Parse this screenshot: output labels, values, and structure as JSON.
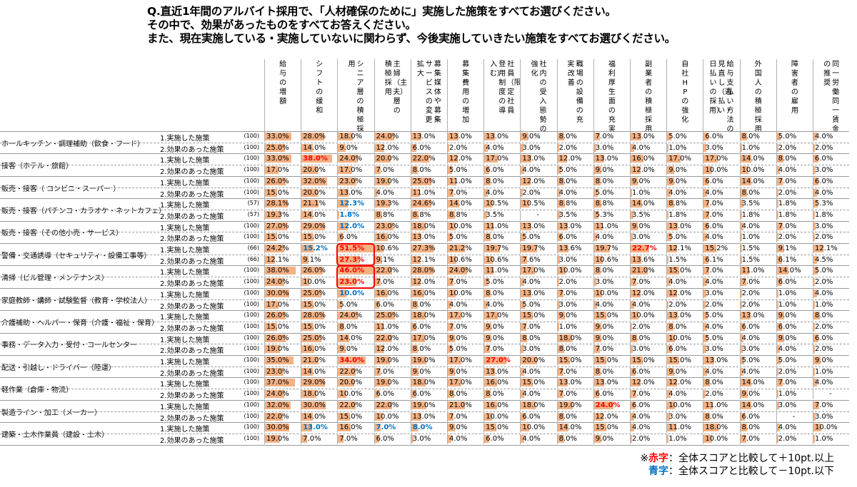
{
  "question": {
    "line1": "Q.直近1年間のアルバイト採用で、「人材確保のために」実施した施策をすべてお選びください。",
    "line2": "その中で、効果があったものをすべてお答えください。",
    "line3": "また、現在実施している・実施していないに関わらず、今後実施していきたい施策をすべてお選びください。"
  },
  "legend": {
    "red_label": "赤字",
    "red_text": "：全体スコアと比較して＋10pt.以上",
    "blue_label": "青字",
    "blue_text": "：全体スコアと比較して－10pt.以下",
    "mark": "※"
  },
  "colors": {
    "bar": "#f4b183",
    "red": "#ff0000",
    "blue": "#0070c0"
  },
  "chart_data": {
    "type": "table",
    "title": "",
    "columns": [
      [
        "給与の増額"
      ],
      [
        "シフトの緩和"
      ],
      [
        "シニア層の積極採",
        "用"
      ],
      [
        "主婦（主夫）層の",
        "積極採用"
      ],
      [
        "募集媒体や募集",
        "サービスの変更・",
        "拡大"
      ],
      [
        "募集費用の増加"
      ],
      [
        "社員（限定社員",
        "登用制度の導",
        "入む）"
      ],
      [
        "社内の受入態勢の",
        "強化"
      ],
      [
        "職場の設備の充",
        "実・改善"
      ],
      [
        "福利厚生面の充実"
      ],
      [
        "副業者の積極採用"
      ],
      [
        "自社HPの強化"
      ],
      [
        "給与支払い方法の",
        "見直し（週払い・",
        "日払いの採用）"
      ],
      [
        "外国人の積極採用"
      ],
      [
        "障害者の雇用"
      ],
      [
        "同一労働同一賃金",
        "の推奨"
      ]
    ],
    "sub_labels": [
      "1.実施した施策",
      "2.効果のあった施策"
    ],
    "rows": [
      {
        "job": "ホールキッチン・調理補助（飲食・フード）",
        "n": [
          "(100)",
          "(100)"
        ],
        "values": [
          [
            33.0,
            28.0,
            18.0,
            24.0,
            13.0,
            13.0,
            13.0,
            9.0,
            8.0,
            7.0,
            13.0,
            5.0,
            6.0,
            8.0,
            5.0,
            4.0
          ],
          [
            25.0,
            14.0,
            9.0,
            12.0,
            6.0,
            2.0,
            4.0,
            3.0,
            2.0,
            3.0,
            4.0,
            1.0,
            3.0,
            1.0,
            2.0,
            2.0
          ]
        ],
        "flags": [
          {},
          {}
        ]
      },
      {
        "job": "接客（ホテル・旅館）",
        "n": [
          "(100)",
          "(100)"
        ],
        "values": [
          [
            33.0,
            38.0,
            24.0,
            20.0,
            22.0,
            12.0,
            17.0,
            13.0,
            12.0,
            13.0,
            16.0,
            17.0,
            17.0,
            14.0,
            8.0,
            6.0
          ],
          [
            17.0,
            20.0,
            17.0,
            7.0,
            8.0,
            5.0,
            6.0,
            4.0,
            5.0,
            9.0,
            12.0,
            9.0,
            10.0,
            10.0,
            4.0,
            3.0
          ]
        ],
        "flags": [
          {
            "1": "red"
          },
          {}
        ]
      },
      {
        "job": "販売・接客（ コンビニ・スーパー ）",
        "n": [
          "(100)",
          "(100)"
        ],
        "values": [
          [
            26.0,
            32.0,
            23.0,
            19.0,
            25.0,
            11.0,
            8.0,
            12.0,
            8.0,
            8.0,
            9.0,
            9.0,
            6.0,
            14.0,
            7.0,
            6.0
          ],
          [
            15.0,
            20.0,
            13.0,
            4.0,
            11.0,
            7.0,
            4.0,
            2.0,
            4.0,
            5.0,
            1.0,
            4.0,
            4.0,
            8.0,
            2.0,
            4.0
          ]
        ],
        "flags": [
          {},
          {}
        ]
      },
      {
        "job": "販売・接客（パチンコ・カラオケ・ネットカフェ）",
        "n": [
          "(57)",
          "(57)"
        ],
        "values": [
          [
            28.1,
            21.1,
            12.3,
            19.3,
            24.6,
            14.0,
            10.5,
            10.5,
            8.8,
            8.8,
            14.0,
            8.8,
            7.0,
            3.5,
            1.8,
            5.3
          ],
          [
            19.3,
            14.0,
            1.8,
            8.8,
            8.8,
            8.8,
            3.5,
            null,
            3.5,
            5.3,
            3.5,
            1.8,
            7.0,
            1.8,
            1.8,
            1.8
          ]
        ],
        "flags": [
          {
            "2": "blue"
          },
          {
            "2": "blue"
          }
        ]
      },
      {
        "job": "販売・接客（その他小売・サービス）",
        "n": [
          "(100)",
          "(100)"
        ],
        "values": [
          [
            27.0,
            29.0,
            12.0,
            23.0,
            18.0,
            10.0,
            11.0,
            13.0,
            13.0,
            11.0,
            9.0,
            13.0,
            6.0,
            4.0,
            7.0,
            3.0
          ],
          [
            15.0,
            15.0,
            6.0,
            16.0,
            13.0,
            5.0,
            8.0,
            5.0,
            6.0,
            4.0,
            3.0,
            5.0,
            4.0,
            1.0,
            2.0,
            2.0
          ]
        ],
        "flags": [
          {
            "2": "blue"
          },
          {}
        ]
      },
      {
        "job": "警備・交通誘導（セキュリティ・設備工事等）",
        "n": [
          "(66)",
          "(66)"
        ],
        "values": [
          [
            24.2,
            15.2,
            51.5,
            10.6,
            27.3,
            21.2,
            19.7,
            19.7,
            13.6,
            19.7,
            22.7,
            12.1,
            15.2,
            1.5,
            9.1,
            12.1
          ],
          [
            12.1,
            9.1,
            27.3,
            9.1,
            12.1,
            10.6,
            10.6,
            7.6,
            3.0,
            10.6,
            13.6,
            1.5,
            6.1,
            1.5,
            6.1,
            4.5
          ]
        ],
        "flags": [
          {
            "1": "blue",
            "2": "red",
            "10": "red"
          },
          {
            "2": "red"
          }
        ]
      },
      {
        "job": "清掃（ビル管理・メンテナンス）",
        "n": [
          "(100)",
          "(100)"
        ],
        "values": [
          [
            38.0,
            26.0,
            46.0,
            22.0,
            28.0,
            24.0,
            11.0,
            17.0,
            10.0,
            8.0,
            21.0,
            15.0,
            7.0,
            11.0,
            14.0,
            5.0
          ],
          [
            24.0,
            10.0,
            23.0,
            7.0,
            12.0,
            7.0,
            5.0,
            4.0,
            2.0,
            3.0,
            7.0,
            4.0,
            4.0,
            7.0,
            6.0,
            2.0
          ]
        ],
        "flags": [
          {
            "2": "red"
          },
          {
            "2": "red"
          }
        ]
      },
      {
        "job": "家庭教師・講師・試験監督（教育・学校法人）",
        "n": [
          "(100)",
          "(100)"
        ],
        "values": [
          [
            30.0,
            25.0,
            10.0,
            16.0,
            16.0,
            10.0,
            8.0,
            13.0,
            7.0,
            10.0,
            12.0,
            12.0,
            3.0,
            2.0,
            1.0,
            4.0
          ],
          [
            17.0,
            15.0,
            5.0,
            6.0,
            8.0,
            4.0,
            4.0,
            5.0,
            3.0,
            4.0,
            4.0,
            2.0,
            2.0,
            2.0,
            1.0,
            1.0
          ]
        ],
        "flags": [
          {
            "2": "blue"
          },
          {}
        ]
      },
      {
        "job": "介護補助・ヘルパー・保育（介護・福祉・保育）",
        "n": [
          "(100)",
          "(100)"
        ],
        "values": [
          [
            26.0,
            28.0,
            24.0,
            25.0,
            18.0,
            17.0,
            17.0,
            15.0,
            9.0,
            15.0,
            10.0,
            13.0,
            5.0,
            13.0,
            9.0,
            8.0
          ],
          [
            15.0,
            15.0,
            8.0,
            11.0,
            6.0,
            7.0,
            9.0,
            7.0,
            1.0,
            9.0,
            2.0,
            8.0,
            4.0,
            6.0,
            6.0,
            2.0
          ]
        ],
        "flags": [
          {},
          {}
        ]
      },
      {
        "job": "事務・データ入力・受付・コールセンター",
        "n": [
          "(100)",
          "(100)"
        ],
        "values": [
          [
            26.0,
            25.0,
            14.0,
            22.0,
            17.0,
            9.0,
            9.0,
            8.0,
            18.0,
            9.0,
            8.0,
            10.0,
            5.0,
            4.0,
            9.0,
            6.0
          ],
          [
            19.0,
            16.0,
            9.0,
            12.0,
            8.0,
            5.0,
            7.0,
            3.0,
            8.0,
            7.0,
            3.0,
            6.0,
            3.0,
            3.0,
            4.0,
            2.0
          ]
        ],
        "flags": [
          {},
          {}
        ]
      },
      {
        "job": "配送・引越し・ドライバー（陸運）",
        "n": [
          "(100)",
          "(100)"
        ],
        "values": [
          [
            35.0,
            21.0,
            34.0,
            19.0,
            19.0,
            17.0,
            27.0,
            20.0,
            15.0,
            15.0,
            15.0,
            15.0,
            13.0,
            5.0,
            5.0,
            9.0
          ],
          [
            23.0,
            14.0,
            22.0,
            7.0,
            9.0,
            9.0,
            13.0,
            4.0,
            7.0,
            8.0,
            6.0,
            9.0,
            4.0,
            4.0,
            2.0,
            1.0
          ]
        ],
        "flags": [
          {
            "2": "red",
            "6": "red"
          },
          {}
        ]
      },
      {
        "job": "軽作業（倉庫・物流）",
        "n": [
          "(100)",
          "(100)"
        ],
        "values": [
          [
            37.0,
            29.0,
            20.0,
            19.0,
            18.0,
            17.0,
            16.0,
            15.0,
            13.0,
            13.0,
            12.0,
            12.0,
            8.0,
            14.0,
            7.0,
            4.0
          ],
          [
            24.0,
            18.0,
            10.0,
            6.0,
            6.0,
            8.0,
            8.0,
            4.0,
            7.0,
            6.0,
            7.0,
            4.0,
            2.0,
            9.0,
            1.0,
            null
          ]
        ],
        "flags": [
          {},
          {}
        ]
      },
      {
        "job": "製造ライン・加工（メーカー）",
        "n": [
          "(100)",
          "(100)"
        ],
        "values": [
          [
            32.0,
            30.0,
            22.0,
            22.0,
            19.0,
            21.0,
            16.0,
            18.0,
            19.0,
            24.0,
            6.0,
            10.0,
            11.0,
            14.0,
            3.0,
            7.0
          ],
          [
            22.0,
            14.0,
            15.0,
            10.0,
            13.0,
            7.0,
            10.0,
            6.0,
            8.0,
            12.0,
            4.0,
            3.0,
            8.0,
            6.0,
            null,
            3.0
          ]
        ],
        "flags": [
          {
            "9": "red"
          },
          {}
        ]
      },
      {
        "job": "建築・土木作業員（建設・土木）",
        "n": [
          "(100)",
          "(100)"
        ],
        "values": [
          [
            30.0,
            13.0,
            16.0,
            7.0,
            8.0,
            9.0,
            15.0,
            10.0,
            14.0,
            15.0,
            4.0,
            11.0,
            18.0,
            8.0,
            4.0,
            10.0
          ],
          [
            19.0,
            7.0,
            7.0,
            6.0,
            3.0,
            4.0,
            6.0,
            4.0,
            8.0,
            9.0,
            2.0,
            1.0,
            10.0,
            7.0,
            2.0,
            1.0
          ]
        ],
        "flags": [
          {
            "1": "blue",
            "3": "blue",
            "4": "blue"
          },
          {}
        ]
      }
    ],
    "missing_mark": "-",
    "highlight_boxes": [
      [
        5,
        2
      ],
      [
        6,
        2
      ]
    ]
  }
}
